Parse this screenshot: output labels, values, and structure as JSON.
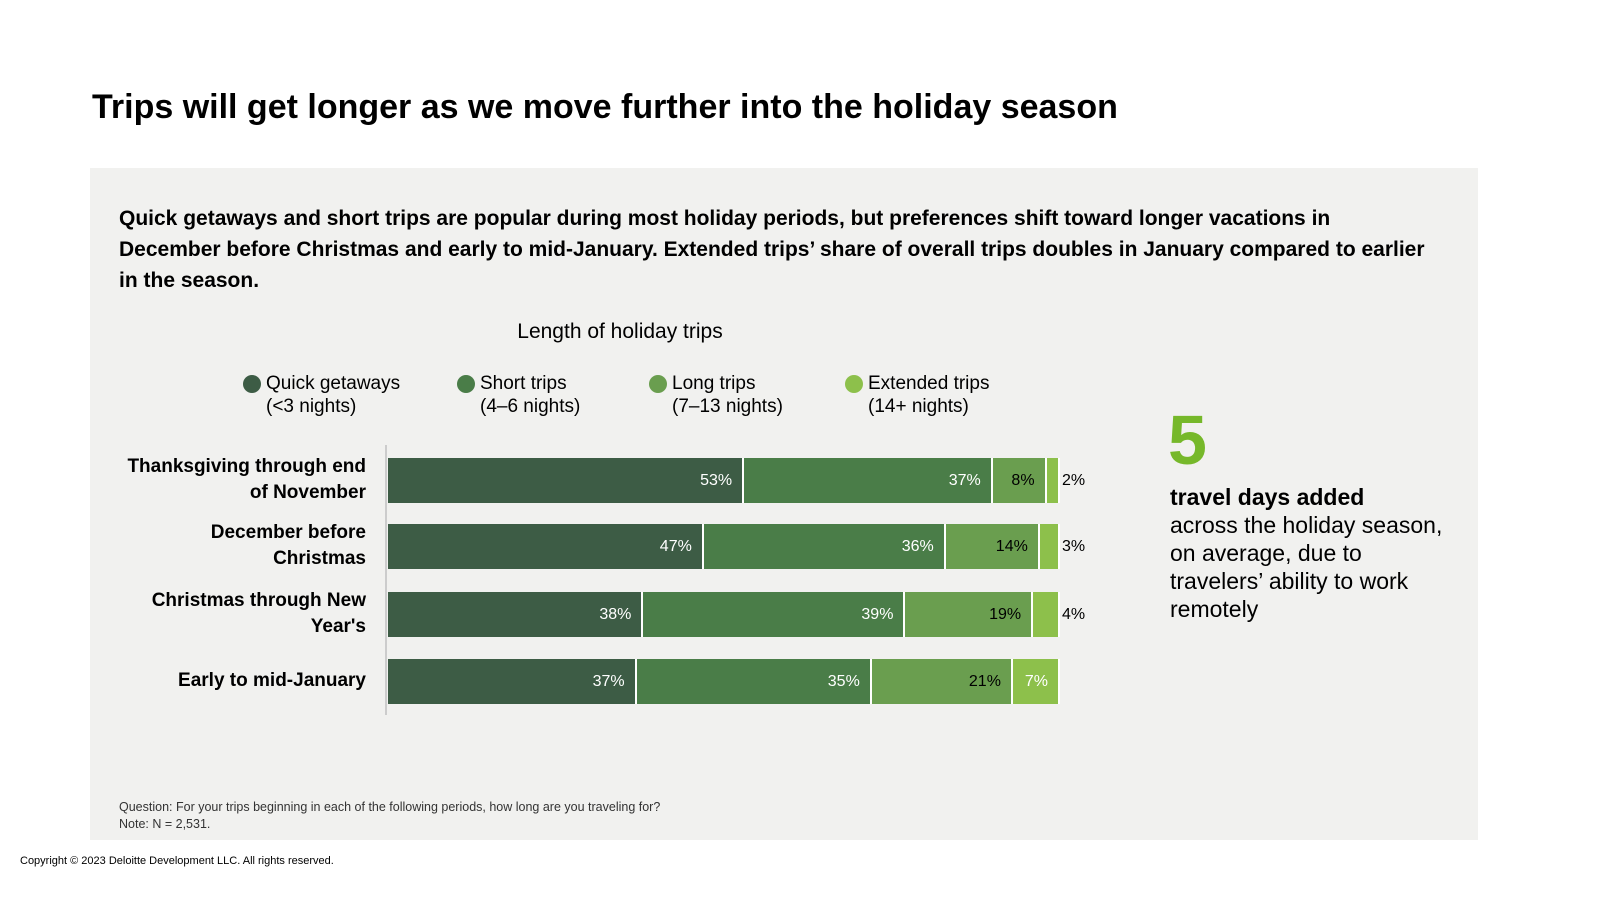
{
  "header": {
    "title": "Trips will get longer as we move further into the holiday season"
  },
  "intro": "Quick getaways and short trips are popular during most holiday periods, but preferences shift toward longer vacations in December before Christmas and early to mid-January. Extended trips’ share of overall trips doubles in January compared to earlier in the season.",
  "chart_data": {
    "type": "bar",
    "orientation": "horizontal",
    "stacked": true,
    "title": "Length of holiday trips",
    "categories": [
      "Thanksgiving through end of November",
      "December before Christmas",
      "Christmas through New Year's",
      "Early to mid-January"
    ],
    "xlim": [
      0,
      100
    ],
    "series": [
      {
        "name": "Quick getaways",
        "subtitle": "(<3 nights)",
        "color": "#3d5c45",
        "label_color": "#ffffff",
        "values": [
          53,
          47,
          38,
          37
        ],
        "value_labels": [
          "53%",
          "47%",
          "38%",
          "37%"
        ]
      },
      {
        "name": "Short trips",
        "subtitle": "(4–6 nights)",
        "color": "#4a7d48",
        "label_color": "#ffffff",
        "values": [
          37,
          36,
          39,
          35
        ],
        "value_labels": [
          "37%",
          "36%",
          "39%",
          "35%"
        ]
      },
      {
        "name": "Long trips",
        "subtitle": "(7–13 nights)",
        "color": "#6a9e4f",
        "label_color": "#000000",
        "values": [
          8,
          14,
          19,
          21
        ],
        "value_labels": [
          "8%",
          "14%",
          "19%",
          "21%"
        ]
      },
      {
        "name": "Extended trips",
        "subtitle": "(14+ nights)",
        "color": "#8dc04b",
        "label_color": "#ffffff",
        "values": [
          2,
          3,
          4,
          7
        ],
        "value_labels": [
          "2%",
          "3%",
          "4%",
          "7%"
        ]
      }
    ]
  },
  "callout": {
    "number": "5",
    "headline": "travel days added",
    "text": "across the holiday season, on average, due to travelers’ ability to work remotely"
  },
  "footer": {
    "question": "Question: For your trips beginning in each of the following periods, how long are you traveling for?",
    "note": "Note: N = 2,531.",
    "copyright": "Copyright © 2023 Deloitte Development LLC. All rights reserved."
  }
}
